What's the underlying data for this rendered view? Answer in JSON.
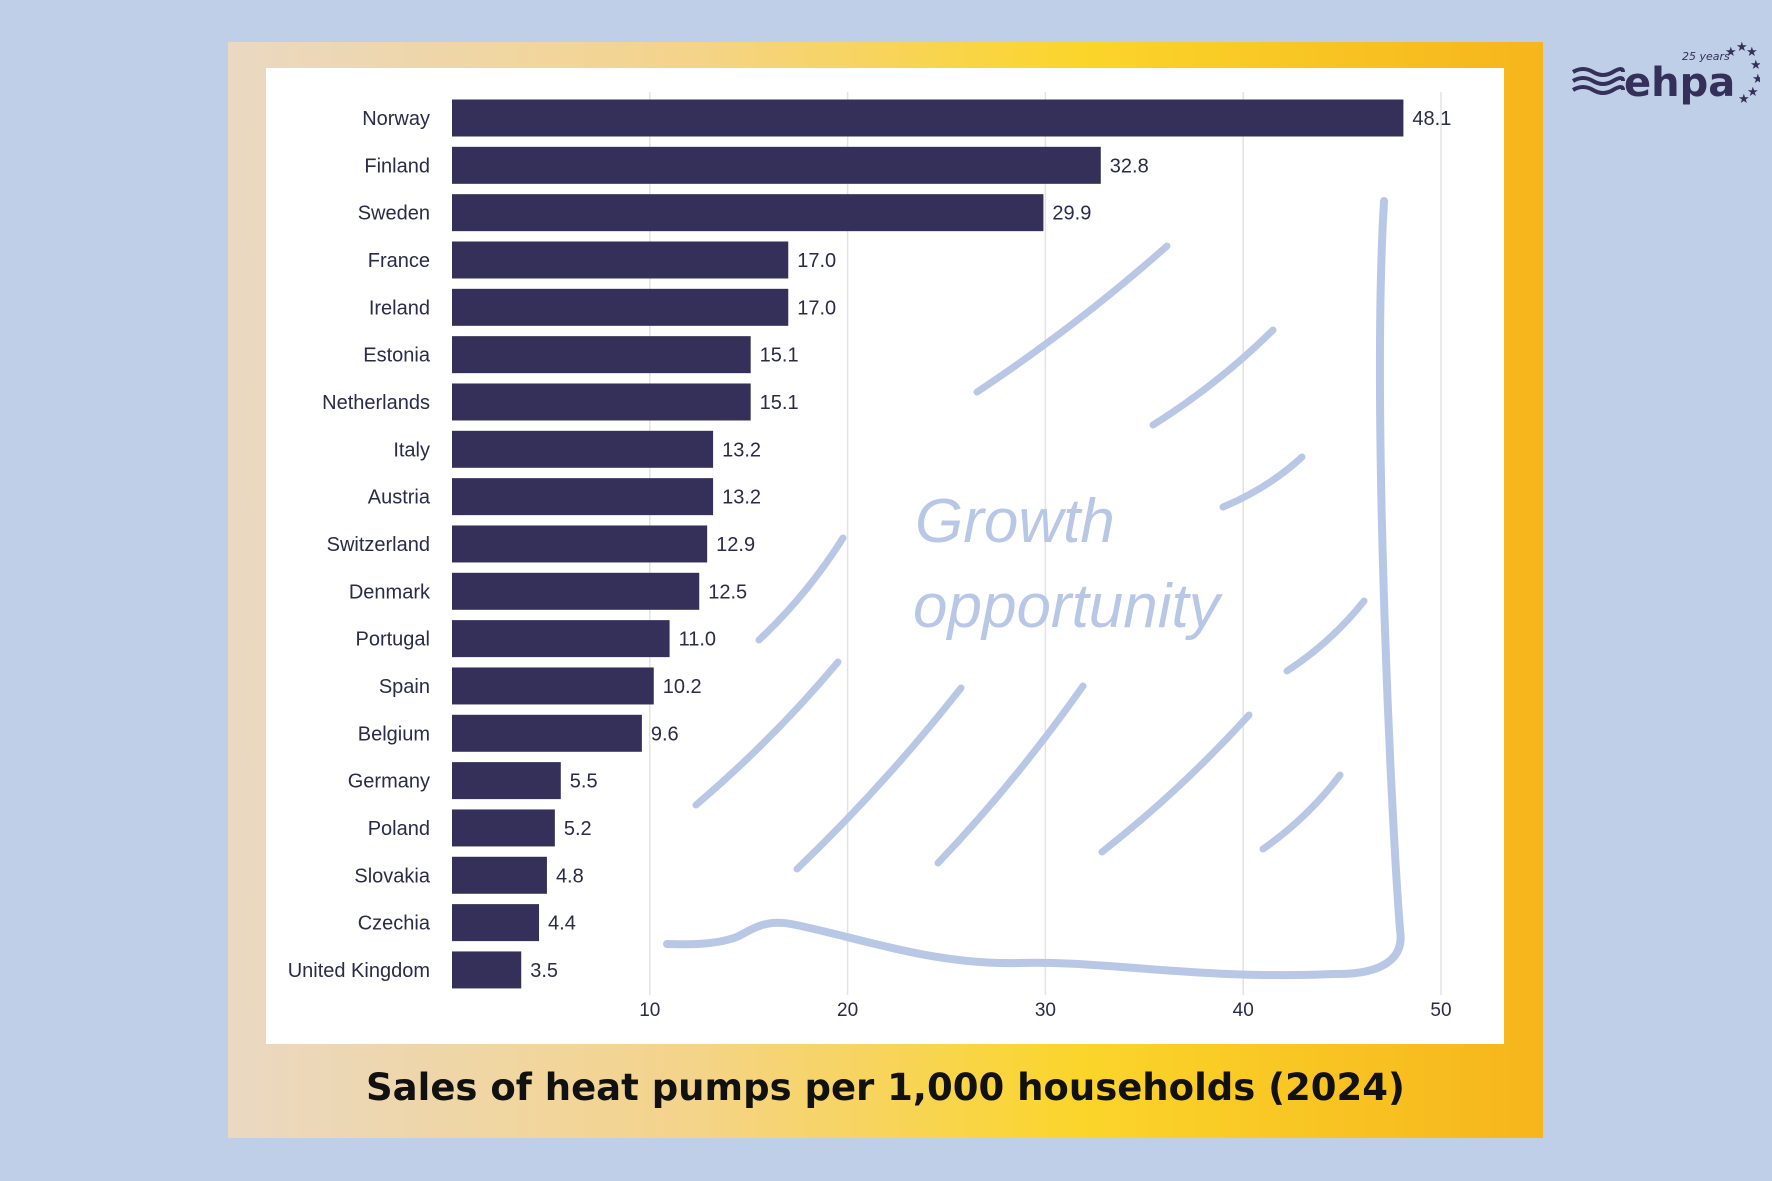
{
  "chart_data": {
    "type": "bar",
    "orientation": "horizontal",
    "title": "Sales of heat pumps per 1,000 households (2024)",
    "categories": [
      "Norway",
      "Finland",
      "Sweden",
      "France",
      "Ireland",
      "Estonia",
      "Netherlands",
      "Italy",
      "Austria",
      "Switzerland",
      "Denmark",
      "Portugal",
      "Spain",
      "Belgium",
      "Germany",
      "Poland",
      "Slovakia",
      "Czechia",
      "United Kingdom"
    ],
    "values": [
      48.1,
      32.8,
      29.9,
      17.0,
      17.0,
      15.1,
      15.1,
      13.2,
      13.2,
      12.9,
      12.5,
      11.0,
      10.2,
      9.6,
      5.5,
      5.2,
      4.8,
      4.4,
      3.5
    ],
    "value_labels": [
      "48.1",
      "32.8",
      "29.9",
      "17.0",
      "17.0",
      "15.1",
      "15.1",
      "13.2",
      "13.2",
      "12.9",
      "12.5",
      "11.0",
      "10.2",
      "9.6",
      "5.5",
      "5.2",
      "4.8",
      "4.4",
      "3.5"
    ],
    "xticks": [
      10,
      20,
      30,
      40,
      50
    ],
    "xlim": [
      0,
      50
    ],
    "grid": "vertical",
    "annotation": [
      "Growth",
      "opportunity"
    ],
    "colors": {
      "bar": "#35305a",
      "annotation": "#b9c7e6",
      "background": "#c0cfe8"
    }
  },
  "logo": {
    "text": "ehpa",
    "badge": "25 years"
  }
}
